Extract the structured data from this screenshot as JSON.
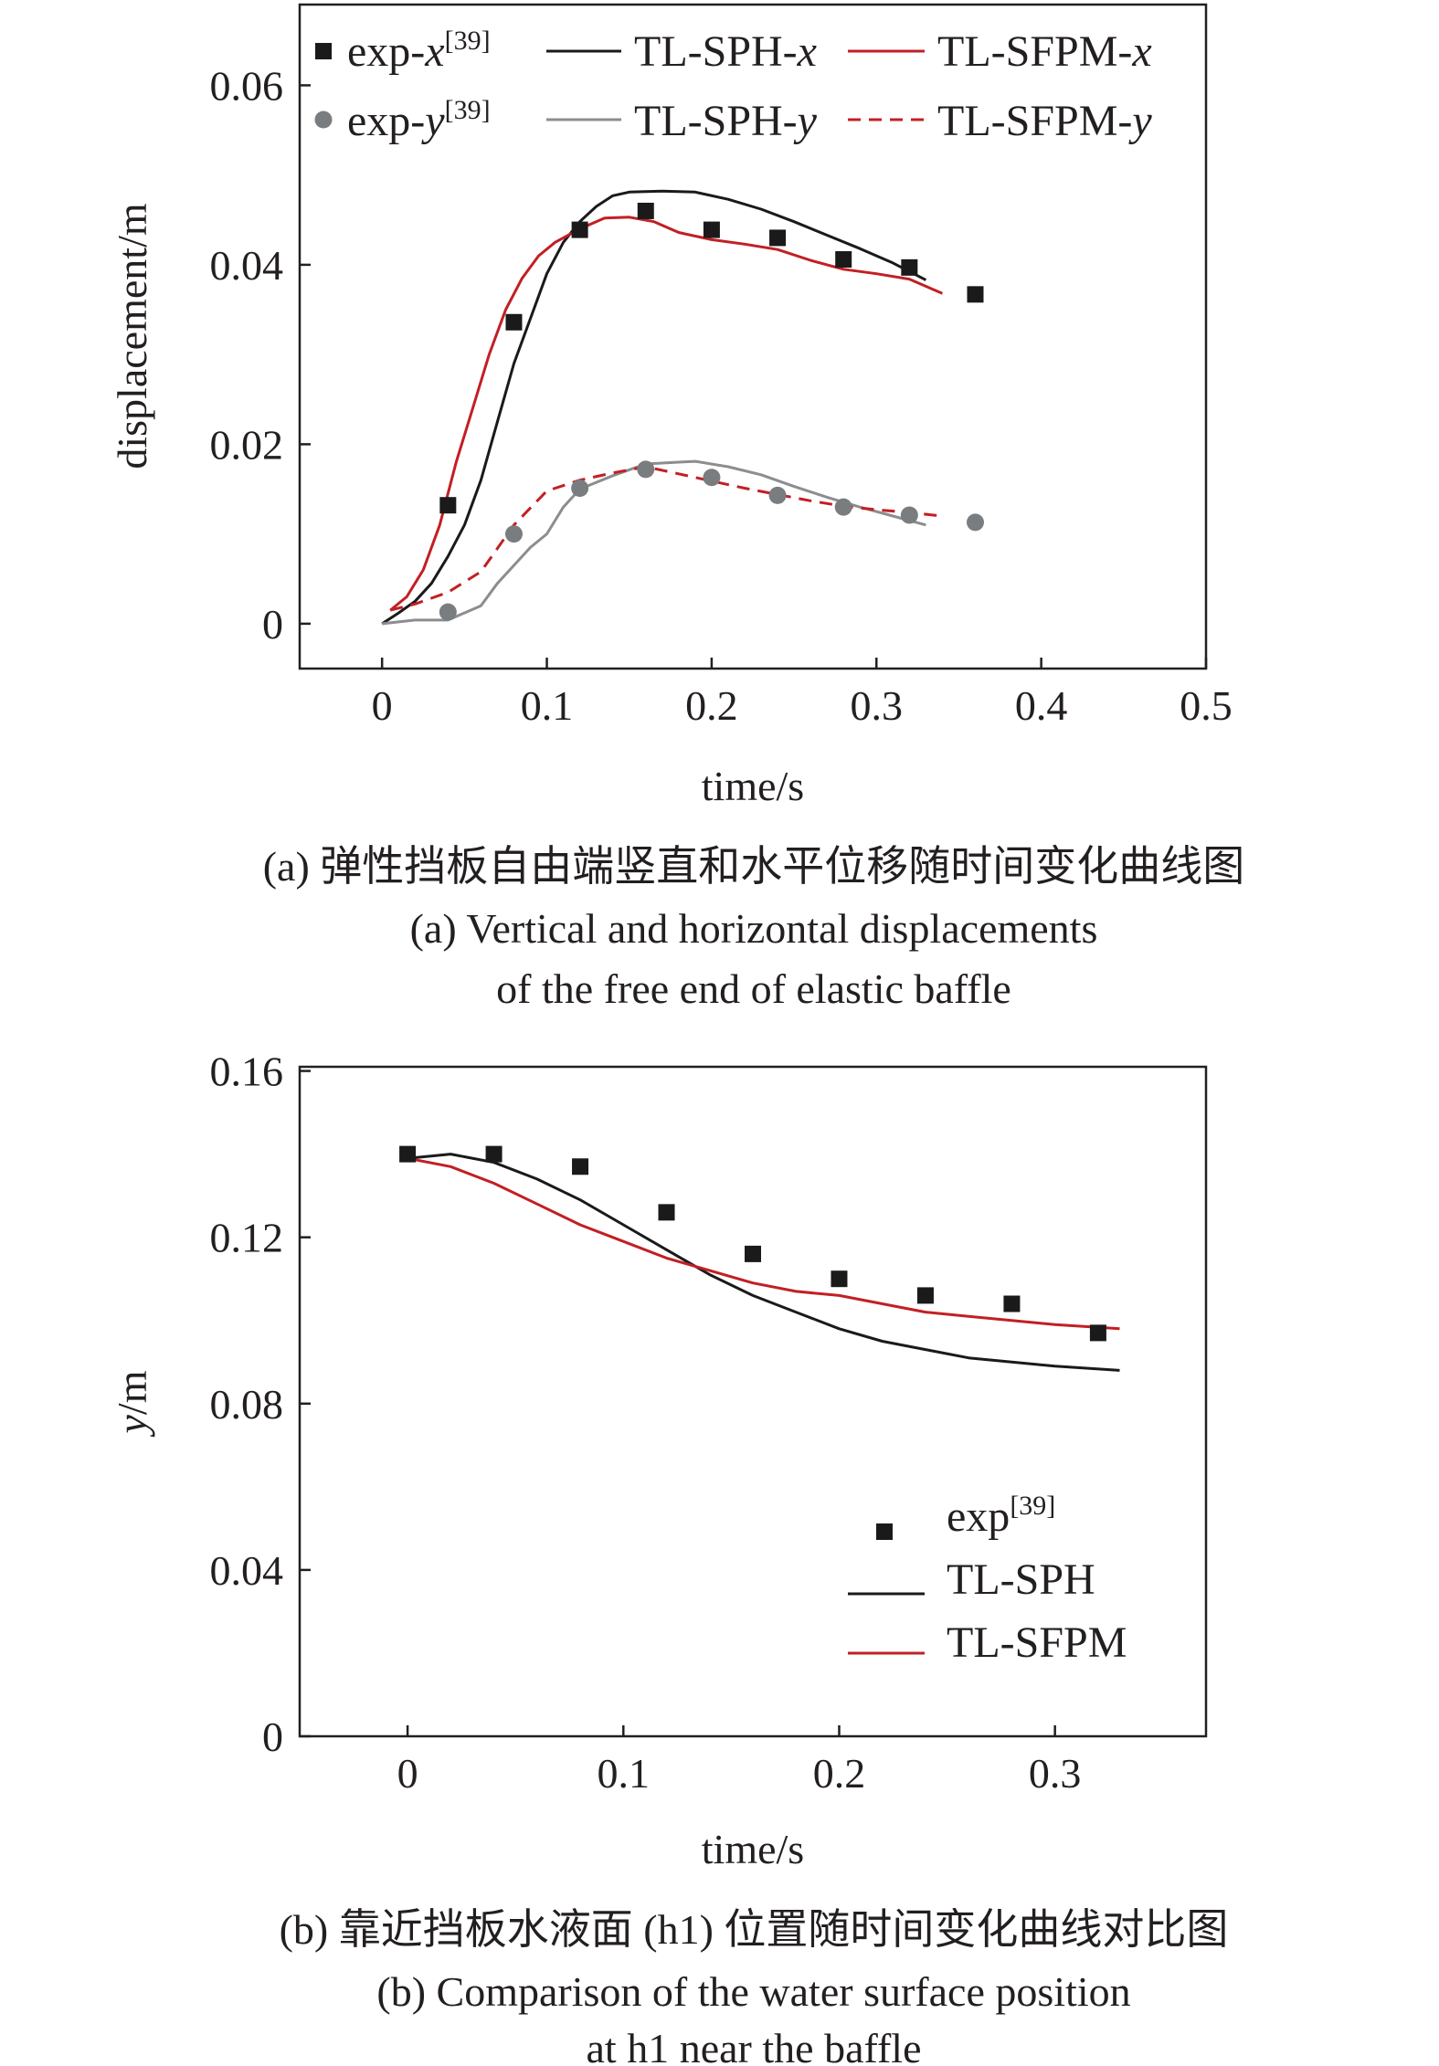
{
  "chart_data": [
    {
      "id": "a",
      "type": "line",
      "xlabel": "time/s",
      "ylabel": "displacement/m",
      "xlim": [
        -0.05,
        0.5
      ],
      "ylim": [
        -0.005,
        0.069
      ],
      "xticks": [
        "0",
        "0.1",
        "0.2",
        "0.3",
        "0.4",
        "0.5"
      ],
      "xtick_values": [
        0,
        0.1,
        0.2,
        0.3,
        0.4,
        0.5
      ],
      "yticks": [
        "0",
        "0.02",
        "0.04",
        "0.06"
      ],
      "ytick_values": [
        0,
        0.02,
        0.04,
        0.06
      ],
      "grid": false,
      "legend_position": "top",
      "series": [
        {
          "legend_base": "exp-",
          "legend_var": "x",
          "legend_sup": "[39]",
          "kind": "scatter",
          "marker": "square",
          "color": "#1a1a1a",
          "x": [
            0.04,
            0.08,
            0.12,
            0.16,
            0.2,
            0.24,
            0.28,
            0.32,
            0.36
          ],
          "y": [
            0.0132,
            0.0336,
            0.0439,
            0.046,
            0.0439,
            0.043,
            0.0406,
            0.0397,
            0.0367
          ]
        },
        {
          "legend_base": "exp-",
          "legend_var": "y",
          "legend_sup": "[39]",
          "kind": "scatter",
          "marker": "circle",
          "color": "#7a7d80",
          "x": [
            0.04,
            0.08,
            0.12,
            0.16,
            0.2,
            0.24,
            0.28,
            0.32,
            0.36
          ],
          "y": [
            0.0013,
            0.01,
            0.0151,
            0.0172,
            0.0163,
            0.0143,
            0.013,
            0.0121,
            0.0113
          ]
        },
        {
          "legend_base": "TL-SPH-",
          "legend_var": "x",
          "kind": "line",
          "dash": "solid",
          "color": "#1a1a1a",
          "x": [
            0,
            0.01,
            0.02,
            0.03,
            0.04,
            0.05,
            0.06,
            0.07,
            0.08,
            0.09,
            0.1,
            0.11,
            0.12,
            0.13,
            0.14,
            0.15,
            0.17,
            0.19,
            0.21,
            0.23,
            0.25,
            0.27,
            0.29,
            0.31,
            0.33
          ],
          "y": [
            0,
            0.0012,
            0.0025,
            0.0045,
            0.0075,
            0.011,
            0.016,
            0.0225,
            0.029,
            0.034,
            0.039,
            0.0425,
            0.0448,
            0.0465,
            0.0477,
            0.0481,
            0.0482,
            0.0481,
            0.0473,
            0.0462,
            0.0448,
            0.0433,
            0.0418,
            0.0402,
            0.0383
          ]
        },
        {
          "legend_base": "TL-SPH-",
          "legend_var": "y",
          "kind": "line",
          "dash": "solid",
          "color": "#8b8d90",
          "x": [
            0,
            0.02,
            0.04,
            0.06,
            0.07,
            0.08,
            0.09,
            0.1,
            0.11,
            0.12,
            0.14,
            0.16,
            0.18,
            0.19,
            0.21,
            0.23,
            0.25,
            0.27,
            0.29,
            0.31,
            0.33
          ],
          "y": [
            0,
            0.0004,
            0.0004,
            0.002,
            0.0045,
            0.0065,
            0.0085,
            0.01,
            0.013,
            0.015,
            0.0165,
            0.0178,
            0.018,
            0.0181,
            0.0175,
            0.0166,
            0.0153,
            0.0141,
            0.013,
            0.012,
            0.011
          ]
        },
        {
          "legend_base": "TL-SFPM-",
          "legend_var": "x",
          "kind": "line",
          "dash": "solid",
          "color": "#c21f24",
          "x": [
            0.005,
            0.015,
            0.025,
            0.035,
            0.045,
            0.055,
            0.065,
            0.075,
            0.085,
            0.095,
            0.105,
            0.12,
            0.135,
            0.15,
            0.165,
            0.18,
            0.2,
            0.22,
            0.24,
            0.26,
            0.28,
            0.3,
            0.32,
            0.34
          ],
          "y": [
            0.0015,
            0.003,
            0.006,
            0.011,
            0.018,
            0.024,
            0.03,
            0.035,
            0.0385,
            0.041,
            0.0425,
            0.044,
            0.0452,
            0.0453,
            0.0448,
            0.0436,
            0.0428,
            0.0423,
            0.0417,
            0.0405,
            0.0395,
            0.039,
            0.0384,
            0.0368
          ]
        },
        {
          "legend_base": "TL-SFPM-",
          "legend_var": "y",
          "kind": "line",
          "dash": "dashed",
          "color": "#c21f24",
          "x": [
            0.005,
            0.02,
            0.04,
            0.06,
            0.08,
            0.1,
            0.12,
            0.14,
            0.16,
            0.18,
            0.2,
            0.22,
            0.24,
            0.26,
            0.28,
            0.3,
            0.32,
            0.34
          ],
          "y": [
            0.0015,
            0.0022,
            0.0035,
            0.0058,
            0.011,
            0.0148,
            0.016,
            0.0168,
            0.0175,
            0.0167,
            0.0159,
            0.0151,
            0.0144,
            0.0137,
            0.0131,
            0.0127,
            0.0124,
            0.012
          ]
        }
      ],
      "caption_zh": "(a) 弹性挡板自由端竖直和水平位移随时间变化曲线图",
      "caption_en_1": "(a) Vertical and horizontal displacements",
      "caption_en_2": "of the free end of elastic baffle"
    },
    {
      "id": "b",
      "type": "line",
      "xlabel": "time/s",
      "ylabel_var": "y",
      "ylabel_unit": "/m",
      "xlim": [
        -0.05,
        0.37
      ],
      "ylim": [
        0,
        0.161
      ],
      "xticks": [
        "0",
        "0.1",
        "0.2",
        "0.3"
      ],
      "xtick_values": [
        0,
        0.1,
        0.2,
        0.3
      ],
      "yticks": [
        "0",
        "0.04",
        "0.08",
        "0.12",
        "0.16"
      ],
      "ytick_values": [
        0,
        0.04,
        0.08,
        0.12,
        0.16
      ],
      "grid": false,
      "legend_position": "bottom-right",
      "series": [
        {
          "legend_base": "exp",
          "legend_sup": "[39]",
          "kind": "scatter",
          "marker": "square",
          "color": "#1a1a1a",
          "x": [
            0,
            0.04,
            0.08,
            0.12,
            0.16,
            0.2,
            0.24,
            0.28,
            0.32
          ],
          "y": [
            0.14,
            0.14,
            0.137,
            0.126,
            0.116,
            0.11,
            0.106,
            0.104,
            0.097
          ]
        },
        {
          "legend_base": "TL-SPH",
          "kind": "line",
          "dash": "solid",
          "color": "#1a1a1a",
          "x": [
            0,
            0.02,
            0.04,
            0.06,
            0.08,
            0.1,
            0.12,
            0.14,
            0.16,
            0.18,
            0.2,
            0.22,
            0.24,
            0.26,
            0.28,
            0.3,
            0.33
          ],
          "y": [
            0.139,
            0.14,
            0.138,
            0.134,
            0.129,
            0.123,
            0.117,
            0.111,
            0.106,
            0.102,
            0.098,
            0.095,
            0.093,
            0.091,
            0.09,
            0.089,
            0.088
          ]
        },
        {
          "legend_base": "TL-SFPM",
          "kind": "line",
          "dash": "solid",
          "color": "#c21f24",
          "x": [
            0,
            0.02,
            0.04,
            0.06,
            0.08,
            0.1,
            0.12,
            0.14,
            0.16,
            0.18,
            0.2,
            0.22,
            0.24,
            0.26,
            0.28,
            0.3,
            0.33
          ],
          "y": [
            0.139,
            0.137,
            0.133,
            0.128,
            0.123,
            0.119,
            0.115,
            0.112,
            0.109,
            0.107,
            0.106,
            0.104,
            0.102,
            0.101,
            0.1,
            0.099,
            0.098
          ]
        }
      ],
      "caption_zh": "(b) 靠近挡板水液面 (h1) 位置随时间变化曲线对比图",
      "caption_en_1": "(b) Comparison of the water surface position",
      "caption_en_2": "at h1 near the baffle"
    }
  ]
}
